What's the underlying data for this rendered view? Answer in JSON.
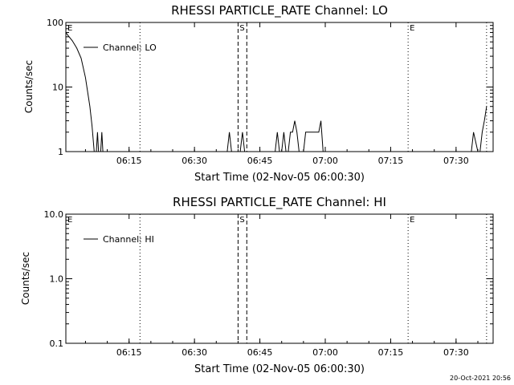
{
  "chart_data": [
    {
      "type": "line",
      "title": "RHESSI PARTICLE_RATE Channel: LO",
      "xlabel": "Start Time (02-Nov-05 06:00:30)",
      "ylabel": "Counts/sec",
      "yscale": "log",
      "ylim": [
        1,
        100
      ],
      "xlim": [
        "06:00:30",
        "07:38:30"
      ],
      "grid": false,
      "legend": {
        "position": "top-left",
        "entries": [
          "Channel: LO"
        ]
      },
      "x_ticks": [
        "06:15",
        "06:30",
        "06:45",
        "07:00",
        "07:15",
        "07:30"
      ],
      "y_ticks": [
        "1",
        "10",
        "100"
      ],
      "markers": [
        {
          "label": "E",
          "time": "06:00:30",
          "style": "none"
        },
        {
          "label": "",
          "time": "06:17:30",
          "style": "dotted"
        },
        {
          "label": "S",
          "time": "06:40:00",
          "style": "dashed"
        },
        {
          "label": "",
          "time": "06:42:00",
          "style": "dashed"
        },
        {
          "label": "E",
          "time": "07:19:00",
          "style": "dotted"
        },
        {
          "label": "",
          "time": "07:37:00",
          "style": "dotted"
        }
      ],
      "series": [
        {
          "name": "Channel: LO",
          "segments": [
            [
              [
                "06:00:30",
                70
              ],
              [
                "06:01:00",
                63
              ],
              [
                "06:02:00",
                52
              ],
              [
                "06:03:00",
                40
              ],
              [
                "06:04:00",
                28
              ],
              [
                "06:05:00",
                14
              ],
              [
                "06:06:00",
                5
              ],
              [
                "06:06:30",
                2.5
              ],
              [
                "06:07:00",
                1
              ]
            ],
            [
              [
                "06:07:30",
                1
              ],
              [
                "06:07:45",
                2
              ],
              [
                "06:08:00",
                1
              ]
            ],
            [
              [
                "06:08:30",
                1
              ],
              [
                "06:08:45",
                2
              ],
              [
                "06:09:00",
                1
              ]
            ],
            [
              [
                "06:37:30",
                1
              ],
              [
                "06:38:00",
                2
              ],
              [
                "06:38:30",
                1
              ]
            ],
            [
              [
                "06:40:30",
                1
              ],
              [
                "06:41:00",
                2
              ],
              [
                "06:41:30",
                1
              ]
            ],
            [
              [
                "06:48:30",
                1
              ],
              [
                "06:49:00",
                2
              ],
              [
                "06:49:30",
                1
              ]
            ],
            [
              [
                "06:50:00",
                1
              ],
              [
                "06:50:30",
                2
              ],
              [
                "06:51:00",
                1
              ]
            ],
            [
              [
                "06:51:30",
                1
              ],
              [
                "06:52:00",
                2
              ],
              [
                "06:52:30",
                2
              ],
              [
                "06:53:00",
                3
              ],
              [
                "06:53:30",
                2
              ],
              [
                "06:54:00",
                1
              ]
            ],
            [
              [
                "06:55:00",
                1
              ],
              [
                "06:55:30",
                2
              ],
              [
                "06:58:30",
                2
              ],
              [
                "06:59:00",
                3
              ],
              [
                "06:59:30",
                1
              ]
            ],
            [
              [
                "07:33:30",
                1
              ],
              [
                "07:34:00",
                2
              ],
              [
                "07:35:00",
                1
              ]
            ],
            [
              [
                "07:35:30",
                1
              ],
              [
                "07:36:00",
                2
              ],
              [
                "07:36:30",
                3
              ],
              [
                "07:37:00",
                5
              ]
            ]
          ]
        }
      ]
    },
    {
      "type": "line",
      "title": "RHESSI PARTICLE_RATE Channel: HI",
      "xlabel": "Start Time (02-Nov-05 06:00:30)",
      "ylabel": "Counts/sec",
      "yscale": "log",
      "ylim": [
        0.1,
        10
      ],
      "xlim": [
        "06:00:30",
        "07:38:30"
      ],
      "grid": false,
      "legend": {
        "position": "top-left",
        "entries": [
          "Channel: HI"
        ]
      },
      "x_ticks": [
        "06:15",
        "06:30",
        "06:45",
        "07:00",
        "07:15",
        "07:30"
      ],
      "y_ticks": [
        "0.1",
        "1.0",
        "10.0"
      ],
      "markers": [
        {
          "label": "E",
          "time": "06:00:30",
          "style": "none"
        },
        {
          "label": "",
          "time": "06:17:30",
          "style": "dotted"
        },
        {
          "label": "S",
          "time": "06:40:00",
          "style": "dashed"
        },
        {
          "label": "",
          "time": "06:42:00",
          "style": "dashed"
        },
        {
          "label": "E",
          "time": "07:19:00",
          "style": "dotted"
        },
        {
          "label": "",
          "time": "07:37:00",
          "style": "dotted"
        }
      ],
      "series": [
        {
          "name": "Channel: HI",
          "segments": []
        }
      ]
    }
  ],
  "footer": {
    "timestamp": "20-Oct-2021 20:56"
  },
  "colors": {
    "background": "#ffffff",
    "foreground": "#000000"
  }
}
